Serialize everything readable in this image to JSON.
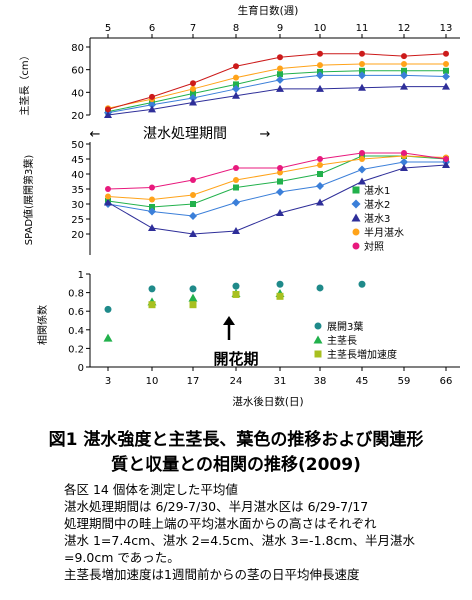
{
  "caption": {
    "title_line1": "図1 湛水強度と主茎長、葉色の推移および関連形",
    "title_line2": "質と収量との相関の推移(2009)",
    "notes": [
      "各区 14 個体を測定した平均値",
      "湛水処理期間は 6/29-7/30、半月湛水区は 6/29-7/17",
      "処理期間中の畦上端の平均湛水面からの高さはそれぞれ",
      "湛水 1=7.4cm、湛水 2=4.5cm、湛水 3=-1.8cm、半月湛水",
      "=9.0cm であった。",
      "主茎長増加速度は1週間前からの茎の日平均伸長速度"
    ]
  },
  "chart_data": [
    {
      "type": "line",
      "ylabel": "主茎長（cm）",
      "x2label": "生育日数(週)",
      "x2ticks": [
        "5",
        "6",
        "7",
        "8",
        "9",
        "10",
        "11",
        "12",
        "13"
      ],
      "yticks": [
        20,
        40,
        60,
        80
      ],
      "ylim": [
        20,
        80
      ],
      "annotation": "湛水処理期間",
      "x": [
        3,
        10,
        17,
        24,
        31,
        38,
        45,
        52,
        59
      ],
      "series": [
        {
          "name": "湛水1",
          "color": "#22b14c",
          "marker": "square",
          "values": [
            23,
            31,
            39,
            47,
            56,
            58,
            59,
            59,
            59
          ]
        },
        {
          "name": "湛水2",
          "color": "#3b7fd9",
          "marker": "diamond",
          "values": [
            22,
            29,
            35,
            43,
            51,
            55,
            55,
            55,
            54
          ]
        },
        {
          "name": "湛水3",
          "color": "#2e2e99",
          "marker": "triangle",
          "values": [
            20,
            25,
            31,
            37,
            43,
            43,
            44,
            45,
            45
          ]
        },
        {
          "name": "半月湛水",
          "color": "#ffa31a",
          "marker": "circle",
          "values": [
            26,
            34,
            43,
            53,
            61,
            64,
            65,
            65,
            65
          ]
        },
        {
          "name": "対照",
          "color": "#cc1a1a",
          "marker": "circle",
          "values": [
            25,
            36,
            48,
            63,
            71,
            74,
            74,
            72,
            74
          ]
        }
      ]
    },
    {
      "type": "line",
      "ylabel": "SPAD値(展開第3葉)",
      "yticks": [
        20,
        25,
        30,
        35,
        40,
        45,
        50
      ],
      "ylim": [
        18,
        50
      ],
      "x": [
        3,
        10,
        17,
        24,
        31,
        38,
        45,
        52,
        59
      ],
      "series": [
        {
          "name": "湛水1",
          "color": "#22b14c",
          "marker": "square",
          "values": [
            31,
            29,
            30,
            35.5,
            37.5,
            40,
            46,
            46,
            45
          ]
        },
        {
          "name": "湛水2",
          "color": "#3b7fd9",
          "marker": "diamond",
          "values": [
            30,
            27.5,
            26,
            30.5,
            34,
            36,
            41.5,
            44,
            44
          ]
        },
        {
          "name": "湛水3",
          "color": "#2e2e99",
          "marker": "triangle",
          "values": [
            30.5,
            22,
            20,
            21,
            27,
            30.5,
            37.5,
            42,
            43
          ]
        },
        {
          "name": "半月湛水",
          "color": "#ffa31a",
          "marker": "circle",
          "values": [
            32.5,
            31.5,
            33,
            38,
            40.5,
            43,
            45,
            46,
            45.5
          ]
        },
        {
          "name": "対照",
          "color": "#e8197d",
          "marker": "circle",
          "values": [
            35,
            35.5,
            38,
            42,
            42,
            45,
            47,
            47,
            45
          ]
        }
      ]
    },
    {
      "type": "scatter",
      "ylabel": "相関係数",
      "xlabel": "湛水後日数(日)",
      "xticks": [
        3,
        10,
        17,
        24,
        31,
        38,
        45,
        59,
        66
      ],
      "yticks": [
        0,
        0.2,
        0.4,
        0.6,
        0.8,
        1
      ],
      "ylim": [
        0,
        1
      ],
      "annotation": "開花期",
      "series": [
        {
          "name": "展開3葉",
          "color": "#1f8a8a",
          "marker": "circle",
          "points": [
            [
              3,
              0.62
            ],
            [
              10,
              0.84
            ],
            [
              17,
              0.84
            ],
            [
              24,
              0.87
            ],
            [
              31,
              0.89
            ],
            [
              38,
              0.85
            ],
            [
              45,
              0.89
            ]
          ]
        },
        {
          "name": "主茎長",
          "color": "#22b14c",
          "marker": "triangle",
          "points": [
            [
              3,
              0.31
            ],
            [
              10,
              0.7
            ],
            [
              17,
              0.74
            ],
            [
              24,
              0.79
            ],
            [
              31,
              0.79
            ]
          ]
        },
        {
          "name": "主茎長増加速度",
          "color": "#a8c020",
          "marker": "square",
          "points": [
            [
              10,
              0.67
            ],
            [
              17,
              0.67
            ],
            [
              24,
              0.78
            ],
            [
              31,
              0.76
            ]
          ]
        }
      ]
    }
  ]
}
